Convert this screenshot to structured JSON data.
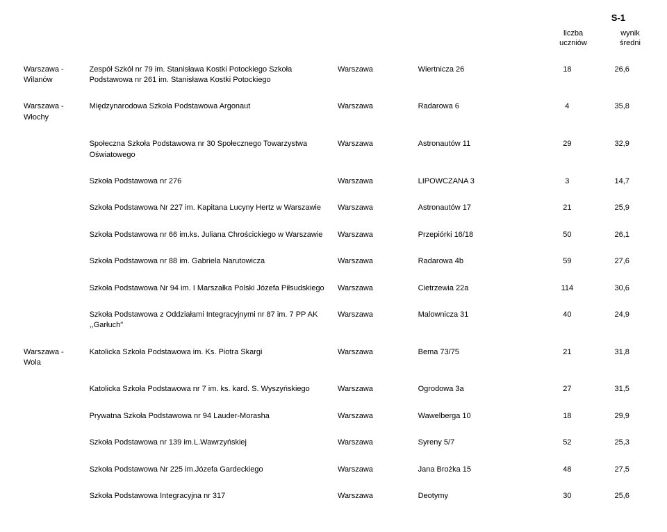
{
  "header": {
    "code": "S-1",
    "col1_line1": "liczba",
    "col1_line2": "uczniów",
    "col2_line1": "wynik",
    "col2_line2": "średni"
  },
  "rows": [
    {
      "district": "Warszawa - Wilanów",
      "school": "Zespół Szkół nr 79 im. Stanisława Kostki Potockiego Szkoła Podstawowa nr 261 im. Stanisława Kostki Potockiego",
      "city": "Warszawa",
      "address": "Wiertnicza 26",
      "students": "18",
      "avg": "26,6"
    },
    {
      "district": "Warszawa - Włochy",
      "school": "Międzynarodowa Szkoła Podstawowa Argonaut",
      "city": "Warszawa",
      "address": "Radarowa 6",
      "students": "4",
      "avg": "35,8"
    },
    {
      "district": "",
      "school": "Społeczna Szkoła Podstawowa nr 30 Społecznego Towarzystwa Oświatowego",
      "city": "Warszawa",
      "address": "Astronautów 11",
      "students": "29",
      "avg": "32,9"
    },
    {
      "district": "",
      "school": "Szkoła  Podstawowa  nr 276",
      "city": "Warszawa",
      "address": "LIPOWCZANA 3",
      "students": "3",
      "avg": "14,7"
    },
    {
      "district": "",
      "school": "Szkoła Podstawowa Nr 227 im. Kapitana Lucyny Hertz w Warszawie",
      "city": "Warszawa",
      "address": "Astronautów 17",
      "students": "21",
      "avg": "25,9"
    },
    {
      "district": "",
      "school": "Szkoła Podstawowa nr 66 im.ks. Juliana Chrościckiego w Warszawie",
      "city": "Warszawa",
      "address": "Przepiórki 16/18",
      "students": "50",
      "avg": "26,1"
    },
    {
      "district": "",
      "school": "Szkoła Podstawowa nr 88 im. Gabriela Narutowicza",
      "city": "Warszawa",
      "address": "Radarowa 4b",
      "students": "59",
      "avg": "27,6"
    },
    {
      "district": "",
      "school": "Szkoła Podstawowa Nr 94 im. I Marszałka Polski Józefa Piłsudskiego",
      "city": "Warszawa",
      "address": "Cietrzewia 22a",
      "students": "114",
      "avg": "30,6"
    },
    {
      "district": "",
      "school": "Szkoła Podstawowa z Oddziałami Integracyjnymi nr 87 im. 7 PP AK ,,Garłuch\"",
      "city": "Warszawa",
      "address": "Malownicza 31",
      "students": "40",
      "avg": "24,9"
    },
    {
      "district": "Warszawa - Wola",
      "school": "Katolicka Szkoła Podstawowa im. Ks. Piotra Skargi",
      "city": "Warszawa",
      "address": "Bema 73/75",
      "students": "21",
      "avg": "31,8"
    },
    {
      "district": "",
      "school": "Katolicka Szkoła Podstawowa nr 7 im. ks. kard. S. Wyszyńskiego",
      "city": "Warszawa",
      "address": "Ogrodowa 3a",
      "students": "27",
      "avg": "31,5"
    },
    {
      "district": "",
      "school": "Prywatna Szkoła Podstawowa nr 94 Lauder-Morasha",
      "city": "Warszawa",
      "address": "Wawelberga 10",
      "students": "18",
      "avg": "29,9"
    },
    {
      "district": "",
      "school": "Szkoła  Podstawowa nr 139 im.L.Wawrzyńskiej",
      "city": "Warszawa",
      "address": "Syreny 5/7",
      "students": "52",
      "avg": "25,3"
    },
    {
      "district": "",
      "school": "Szkoła Podstawowa  Nr 225 im.Józefa Gardeckiego",
      "city": "Warszawa",
      "address": "Jana Brożka 15",
      "students": "48",
      "avg": "27,5"
    },
    {
      "district": "",
      "school": "Szkoła Podstawowa Integracyjna nr 317",
      "city": "Warszawa",
      "address": "Deotymy",
      "students": "30",
      "avg": "25,6"
    }
  ]
}
